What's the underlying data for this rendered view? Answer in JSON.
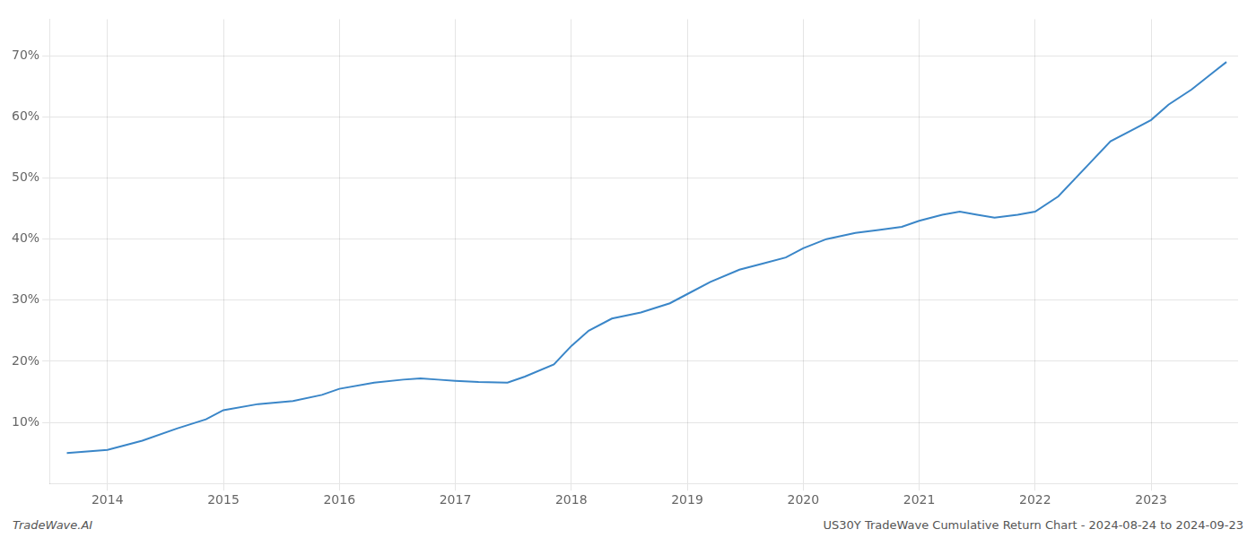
{
  "chart_data": {
    "type": "line",
    "x": [
      2013.65,
      2014.0,
      2014.3,
      2014.6,
      2014.85,
      2015.0,
      2015.3,
      2015.6,
      2015.85,
      2016.0,
      2016.3,
      2016.55,
      2016.7,
      2016.85,
      2017.0,
      2017.2,
      2017.45,
      2017.6,
      2017.85,
      2018.0,
      2018.15,
      2018.35,
      2018.6,
      2018.85,
      2019.0,
      2019.2,
      2019.45,
      2019.65,
      2019.85,
      2020.0,
      2020.2,
      2020.45,
      2020.65,
      2020.85,
      2021.0,
      2021.2,
      2021.35,
      2021.5,
      2021.65,
      2021.85,
      2022.0,
      2022.2,
      2022.45,
      2022.65,
      2022.85,
      2023.0,
      2023.15,
      2023.35,
      2023.55,
      2023.65
    ],
    "values": [
      5.0,
      5.5,
      7.0,
      9.0,
      10.5,
      12.0,
      13.0,
      13.5,
      14.5,
      15.5,
      16.5,
      17.0,
      17.2,
      17.0,
      16.8,
      16.6,
      16.5,
      17.5,
      19.5,
      22.5,
      25.0,
      27.0,
      28.0,
      29.5,
      31.0,
      33.0,
      35.0,
      36.0,
      37.0,
      38.5,
      40.0,
      41.0,
      41.5,
      42.0,
      43.0,
      44.0,
      44.5,
      44.0,
      43.5,
      44.0,
      44.5,
      47.0,
      52.0,
      56.0,
      58.0,
      59.5,
      62.0,
      64.5,
      67.5,
      69.0
    ],
    "color": "#3a86c8",
    "xlim": [
      2013.5,
      2023.75
    ],
    "xticks": [
      2014,
      2015,
      2016,
      2017,
      2018,
      2019,
      2020,
      2021,
      2022,
      2023
    ],
    "ylim": [
      0,
      76
    ],
    "yticks": [
      {
        "value": 10,
        "label": "10%"
      },
      {
        "value": 20,
        "label": "20%"
      },
      {
        "value": 30,
        "label": "30%"
      },
      {
        "value": 40,
        "label": "40%"
      },
      {
        "value": 50,
        "label": "50%"
      },
      {
        "value": 60,
        "label": "60%"
      },
      {
        "value": 70,
        "label": "70%"
      }
    ],
    "grid": true,
    "annotations": [
      "TradeWave.AI",
      "US30Y TradeWave Cumulative Return Chart - 2024-08-24 to 2024-09-23"
    ]
  }
}
